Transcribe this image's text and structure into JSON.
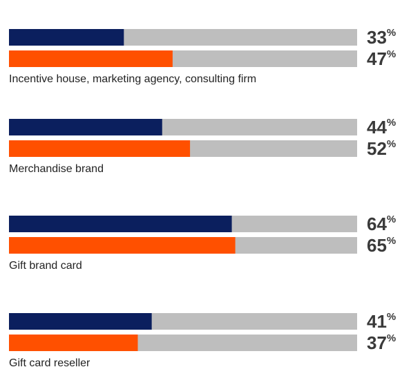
{
  "chart_data": {
    "type": "bar",
    "orientation": "horizontal",
    "categories": [
      "Incentive house, marketing agency, consulting firm",
      "Merchandise brand",
      "Gift brand card",
      "Gift card reseller"
    ],
    "xlim": [
      0,
      100
    ],
    "track_color": "#bebebe",
    "series": [
      {
        "color": "#0b1f5e",
        "values": [
          33,
          44,
          64,
          41
        ],
        "value_labels": [
          "33%",
          "44%",
          "64%",
          "41%"
        ]
      },
      {
        "color": "#ff5000",
        "values": [
          47,
          52,
          65,
          37
        ],
        "value_labels": [
          "47%",
          "52%",
          "65%",
          "37%"
        ]
      }
    ]
  }
}
